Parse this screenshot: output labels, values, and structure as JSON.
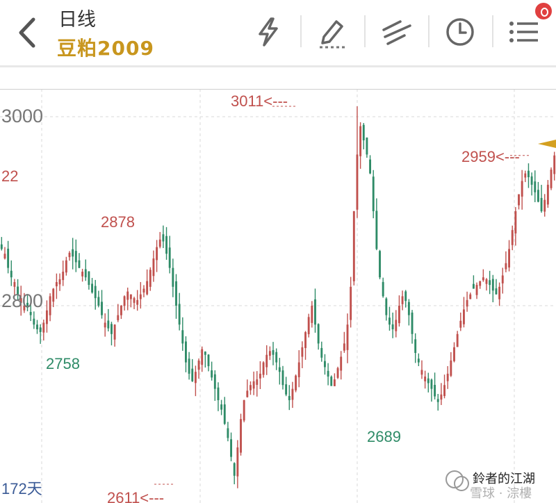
{
  "header": {
    "title": "日线",
    "subtitle": "豆粕2009",
    "back_icon": "chevron-left-icon",
    "tools": [
      "lightning-icon",
      "pencil-icon",
      "line-draw-icon",
      "clock-icon",
      "menu-icon"
    ],
    "badge_color": "#e04040"
  },
  "price_axis": {
    "labels": [
      "3000",
      "2800"
    ]
  },
  "annotations": {
    "high_marker": "3011<---",
    "left_partial": "22",
    "peak_2878": "2878",
    "low_2758": "2758",
    "low_2689": "2689",
    "recent_2959": "2959<---",
    "low_2611": "2611<---"
  },
  "footer": {
    "days_label": "172天",
    "watermark_line1": "鈴者的江湖",
    "watermark_line2": "雪球 · 淙樓"
  },
  "colors": {
    "up": "#c0504d",
    "down": "#2e8b67",
    "accent": "#c8961e"
  },
  "chart_data": {
    "type": "candlestick",
    "title": "豆粕2009",
    "period": "日线",
    "visible_days": 172,
    "ylim": [
      2600,
      3020
    ],
    "gridlines_y": [
      3000,
      2800
    ],
    "grid": true,
    "marked_prices": {
      "high": 3011,
      "low": 2611,
      "local_peak": 2878,
      "local_low_1": 2758,
      "local_low_2": 2689,
      "recent_high": 2959
    },
    "approx_close_path": [
      2860,
      2855,
      2840,
      2830,
      2825,
      2812,
      2808,
      2800,
      2798,
      2790,
      2780,
      2775,
      2772,
      2782,
      2795,
      2810,
      2818,
      2825,
      2828,
      2836,
      2848,
      2856,
      2852,
      2846,
      2840,
      2836,
      2830,
      2822,
      2814,
      2808,
      2800,
      2790,
      2782,
      2776,
      2770,
      2780,
      2790,
      2800,
      2810,
      2815,
      2812,
      2808,
      2806,
      2812,
      2818,
      2826,
      2838,
      2850,
      2862,
      2870,
      2868,
      2855,
      2840,
      2820,
      2800,
      2780,
      2760,
      2740,
      2728,
      2720,
      2730,
      2742,
      2754,
      2748,
      2736,
      2724,
      2712,
      2700,
      2690,
      2675,
      2660,
      2640,
      2620,
      2650,
      2680,
      2700,
      2710,
      2716,
      2720,
      2722,
      2728,
      2740,
      2748,
      2752,
      2748,
      2740,
      2730,
      2716,
      2706,
      2700,
      2712,
      2726,
      2740,
      2756,
      2772,
      2788,
      2800,
      2780,
      2760,
      2745,
      2735,
      2725,
      2715,
      2722,
      2734,
      2746,
      2760,
      2780,
      2820,
      2900,
      2960,
      2990,
      2975,
      2960,
      2940,
      2900,
      2860,
      2830,
      2810,
      2790,
      2780,
      2775,
      2785,
      2800,
      2810,
      2805,
      2790,
      2770,
      2750,
      2740,
      2732,
      2725,
      2718,
      2712,
      2704,
      2698,
      2706,
      2716,
      2728,
      2742,
      2756,
      2770,
      2784,
      2796,
      2806,
      2812,
      2818,
      2822,
      2826,
      2830,
      2828,
      2822,
      2816,
      2812,
      2820,
      2832,
      2845,
      2860,
      2880,
      2900,
      2918,
      2932,
      2940,
      2936,
      2928,
      2920,
      2910,
      2900,
      2912,
      2928,
      2944,
      2959
    ]
  }
}
